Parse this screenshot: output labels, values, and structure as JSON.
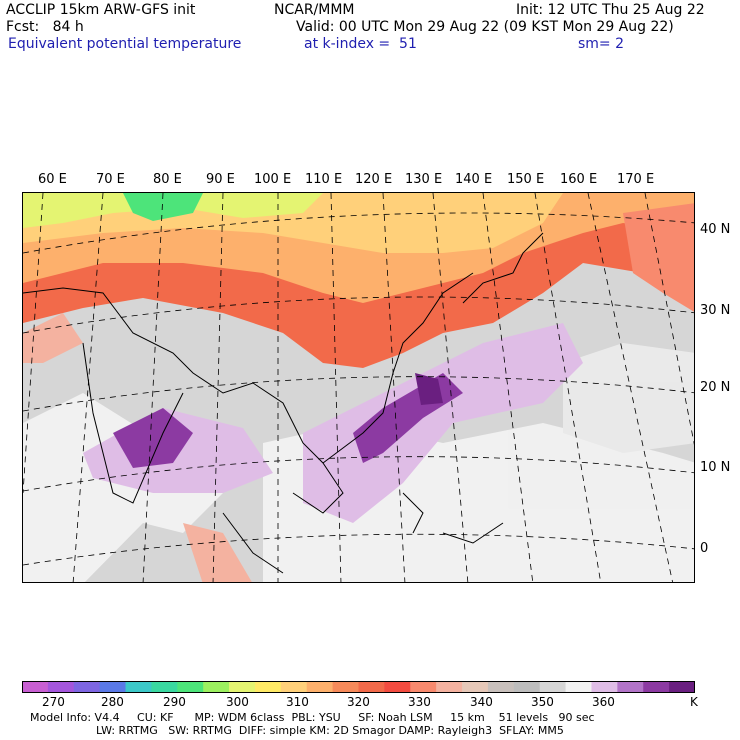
{
  "header": {
    "line1_left": "ACCLIP 15km ARW-GFS init",
    "line1_mid": "NCAR/MMM",
    "line1_right": "Init: 12 UTC Thu 25 Aug 22",
    "line2_left": "Fcst:   84 h",
    "line2_right": "Valid: 00 UTC Mon 29 Aug 22 (09 KST Mon 29 Aug 22)",
    "line3_left": "Equivalent potential temperature",
    "line3_mid": "at k-index =  51",
    "line3_right": "sm= 2"
  },
  "map": {
    "lon_labels": [
      "60 E",
      "70 E",
      "80 E",
      "90 E",
      "100 E",
      "110 E",
      "120 E",
      "130 E",
      "140 E",
      "150 E",
      "160 E",
      "170 E"
    ],
    "lat_labels": [
      "40 N",
      "30 N",
      "20 N",
      "10 N",
      "0"
    ]
  },
  "colorbar": {
    "colors": [
      "#c85fd2",
      "#a456dc",
      "#7e66e2",
      "#5a79e6",
      "#3cc8c8",
      "#3ad8a0",
      "#4de47a",
      "#9cf060",
      "#e4f472",
      "#ffea66",
      "#ffd07a",
      "#fdb06c",
      "#f68a5a",
      "#f26a4a",
      "#f34c40",
      "#f88a6e",
      "#f4b2a0",
      "#e6c8b8",
      "#c8c0bc",
      "#bdbdbd",
      "#d6d6d6",
      "#f2f2f2",
      "#dfbde6",
      "#b274c8",
      "#8c3aa2",
      "#6a1f80"
    ],
    "tick_labels": [
      "270",
      "280",
      "290",
      "300",
      "310",
      "320",
      "330",
      "340",
      "350",
      "360"
    ],
    "unit": "K"
  },
  "footer": {
    "line1": "Model Info: V4.4     CU: KF      MP: WDM 6class  PBL: YSU     SF: Noah LSM     15 km    51 levels   90 sec",
    "line2": "LW: RRTMG   SW: RRTMG  DIFF: simple KM: 2D Smagor DAMP: Rayleigh3  SFLAY: MM5"
  }
}
